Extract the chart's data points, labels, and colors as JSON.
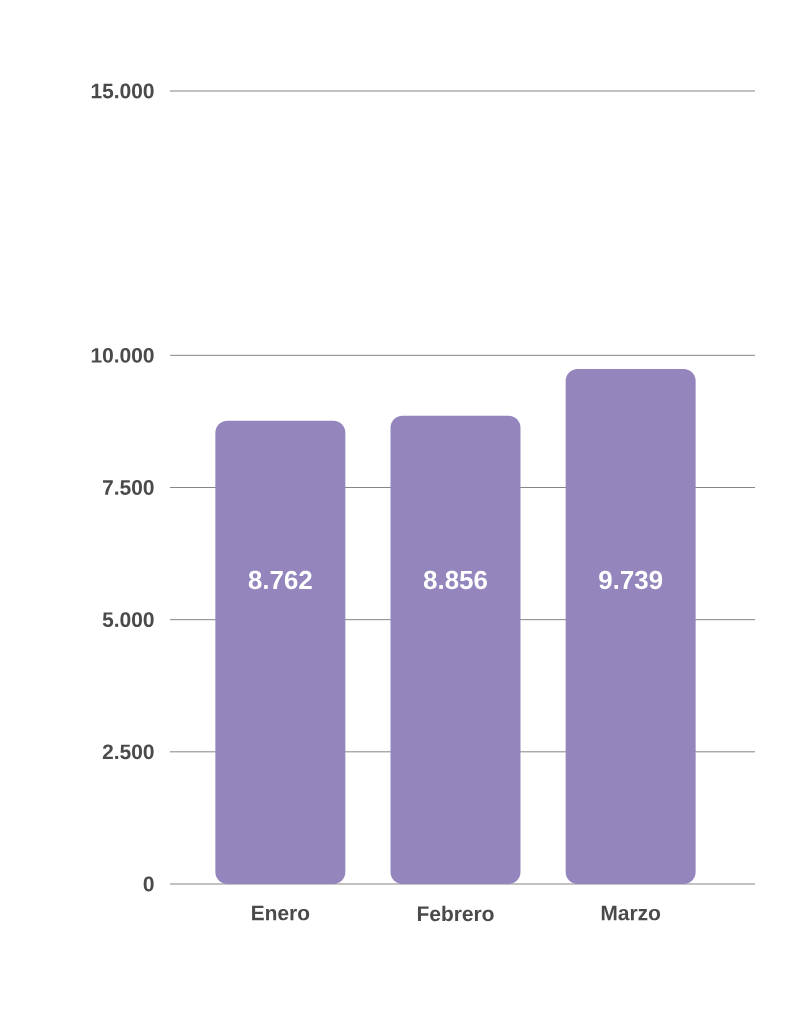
{
  "chart_data": {
    "type": "bar",
    "categories": [
      "Enero",
      "Febrero",
      "Marzo"
    ],
    "values": [
      8762,
      8856,
      9739
    ],
    "color": "#9486bd",
    "value_labels": [
      "8.762",
      "8.856",
      "9.739"
    ],
    "ylim": [
      0,
      15000
    ],
    "yticks": [
      {
        "value": 0,
        "label": "0"
      },
      {
        "value": 2500,
        "label": "2.500"
      },
      {
        "value": 5000,
        "label": "5.000"
      },
      {
        "value": 7500,
        "label": "7.500"
      },
      {
        "value": 10000,
        "label": "10.000"
      },
      {
        "value": 15000,
        "label": "15.000"
      }
    ],
    "grid": "y"
  }
}
